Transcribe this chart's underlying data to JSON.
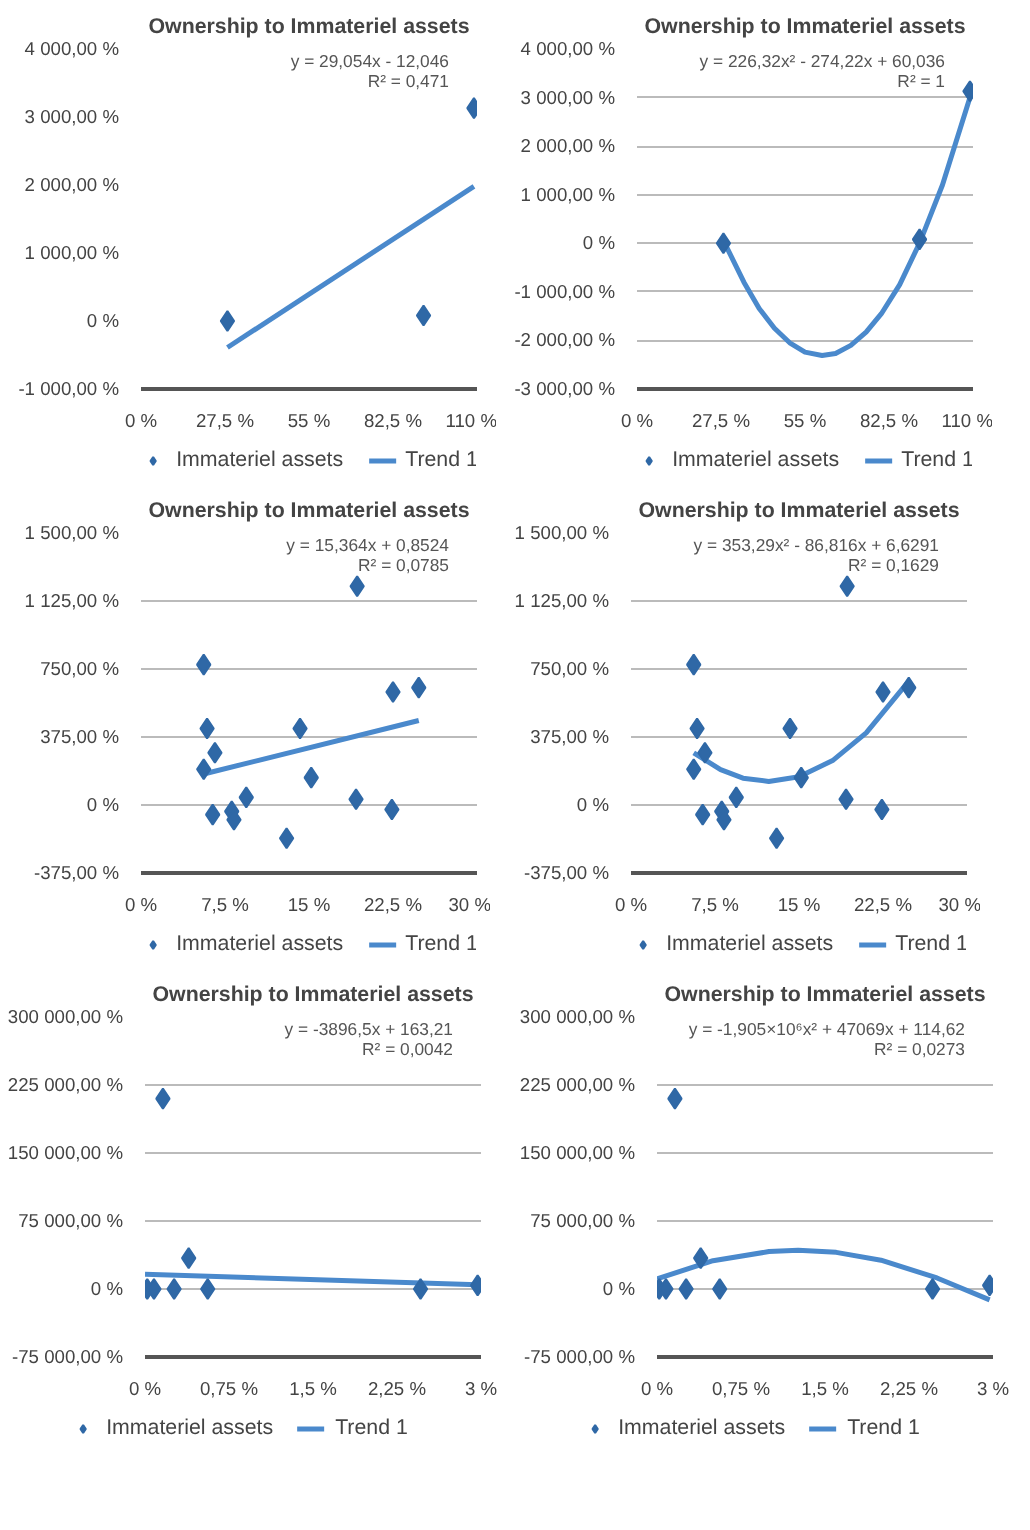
{
  "chart_data": [
    {
      "type": "scatter",
      "title": "Ownership to Immateriel assets",
      "annotations": [
        "y = 29,054x - 12,046",
        "R² = 0,471"
      ],
      "xlim": [
        0,
        110
      ],
      "xticks": [
        {
          "value": 0,
          "label": "0 %"
        },
        {
          "value": 27.5,
          "label": "27,5 %"
        },
        {
          "value": 55,
          "label": "55 %"
        },
        {
          "value": 82.5,
          "label": "82,5 %"
        },
        {
          "value": 110,
          "label": "110 %"
        }
      ],
      "ylim": [
        -1000,
        4000
      ],
      "yticks": [
        {
          "value": -1000,
          "label": "-1 000,00 %"
        },
        {
          "value": 0,
          "label": "0 %"
        },
        {
          "value": 1000,
          "label": "1 000,00 %"
        },
        {
          "value": 2000,
          "label": "2 000,00 %"
        },
        {
          "value": 3000,
          "label": "3 000,00 %"
        },
        {
          "value": 4000,
          "label": "4 000,00 %"
        }
      ],
      "grid": false,
      "legend": "bottom",
      "marker": "diamond",
      "series": [
        {
          "name": "Immateriel assets",
          "color": "#2f68a6",
          "x": [
            28.3,
            92.5,
            109
          ],
          "values": [
            0,
            80,
            3130
          ]
        },
        {
          "name": "Trend 1",
          "type": "line",
          "marker": "none",
          "color": "#4a89cc",
          "x": [
            28.3,
            109
          ],
          "values": [
            -390,
            1980
          ]
        }
      ]
    },
    {
      "type": "scatter",
      "title": "Ownership to Immateriel assets",
      "annotations": [
        "y = 226,32x² - 274,22x + 60,036",
        "R² = 1"
      ],
      "xlim": [
        0,
        110
      ],
      "xticks": [
        {
          "value": 0,
          "label": "0 %"
        },
        {
          "value": 27.5,
          "label": "27,5 %"
        },
        {
          "value": 55,
          "label": "55 %"
        },
        {
          "value": 82.5,
          "label": "82,5 %"
        },
        {
          "value": 110,
          "label": "110 %"
        }
      ],
      "ylim": [
        -3000,
        4000
      ],
      "yticks": [
        {
          "value": -3000,
          "label": "-3 000,00 %"
        },
        {
          "value": -2000,
          "label": "-2 000,00 %"
        },
        {
          "value": -1000,
          "label": "-1 000,00 %"
        },
        {
          "value": 0,
          "label": "0 %"
        },
        {
          "value": 1000,
          "label": "1 000,00 %"
        },
        {
          "value": 2000,
          "label": "2 000,00 %"
        },
        {
          "value": 3000,
          "label": "3 000,00 %"
        },
        {
          "value": 4000,
          "label": "4 000,00 %"
        }
      ],
      "grid": "y",
      "legend": "bottom",
      "marker": "diamond",
      "series": [
        {
          "name": "Immateriel assets",
          "color": "#2f68a6",
          "x": [
            28.3,
            92.5,
            109
          ],
          "values": [
            0,
            80,
            3130
          ]
        },
        {
          "name": "Trend 1",
          "type": "line",
          "marker": "none",
          "color": "#4a89cc",
          "x": [
            28.3,
            35,
            40,
            45,
            50,
            55,
            60.6,
            65,
            70,
            75,
            80,
            86,
            92.5,
            100,
            109
          ],
          "values": [
            56,
            -800,
            -1344,
            -1750,
            -2049,
            -2240,
            -2310,
            -2270,
            -2101,
            -1830,
            -1450,
            -850,
            4,
            1200,
            3000
          ]
        }
      ]
    },
    {
      "type": "scatter",
      "title": "Ownership to Immateriel assets",
      "annotations": [
        "y = 15,364x + 0,8524",
        "R² = 0,0785"
      ],
      "xlim": [
        0,
        30
      ],
      "xticks": [
        {
          "value": 0,
          "label": "0 %"
        },
        {
          "value": 7.5,
          "label": "7,5 %"
        },
        {
          "value": 15,
          "label": "15 %"
        },
        {
          "value": 22.5,
          "label": "22,5 %"
        },
        {
          "value": 30,
          "label": "30 %"
        }
      ],
      "ylim": [
        -375,
        1500
      ],
      "yticks": [
        {
          "value": -375,
          "label": "-375,00 %"
        },
        {
          "value": 0,
          "label": "0 %"
        },
        {
          "value": 375,
          "label": "375,00 %"
        },
        {
          "value": 750,
          "label": "750,00 %"
        },
        {
          "value": 1125,
          "label": "1 125,00 %"
        },
        {
          "value": 1500,
          "label": "1 500,00 %"
        }
      ],
      "grid": "y",
      "legend": "bottom",
      "marker": "diamond",
      "series": [
        {
          "name": "Immateriel assets",
          "color": "#2f68a6",
          "x": [
            5.6,
            5.9,
            6.6,
            5.6,
            6.4,
            8.1,
            8.3,
            9.4,
            13.0,
            14.2,
            15.2,
            19.3,
            19.2,
            22.5,
            22.4,
            24.8
          ],
          "values": [
            774,
            422,
            288,
            197,
            -53,
            -35,
            -81,
            42,
            -183,
            422,
            151,
            1206,
            32,
            623,
            -25,
            647
          ]
        },
        {
          "name": "Trend 1",
          "type": "line",
          "marker": "none",
          "color": "#4a89cc",
          "x": [
            5.6,
            24.8
          ],
          "values": [
            171,
            466
          ]
        }
      ]
    },
    {
      "type": "scatter",
      "title": "Ownership to Immateriel assets",
      "annotations": [
        "y = 353,29x² - 86,816x + 6,6291",
        "R² = 0,1629"
      ],
      "xlim": [
        0,
        30
      ],
      "xticks": [
        {
          "value": 0,
          "label": "0 %"
        },
        {
          "value": 7.5,
          "label": "7,5 %"
        },
        {
          "value": 15,
          "label": "15 %"
        },
        {
          "value": 22.5,
          "label": "22,5 %"
        },
        {
          "value": 30,
          "label": "30 %"
        }
      ],
      "ylim": [
        -375,
        1500
      ],
      "yticks": [
        {
          "value": -375,
          "label": "-375,00 %"
        },
        {
          "value": 0,
          "label": "0 %"
        },
        {
          "value": 375,
          "label": "375,00 %"
        },
        {
          "value": 750,
          "label": "750,00 %"
        },
        {
          "value": 1125,
          "label": "1 125,00 %"
        },
        {
          "value": 1500,
          "label": "1 500,00 %"
        }
      ],
      "grid": "y",
      "legend": "bottom",
      "marker": "diamond",
      "series": [
        {
          "name": "Immateriel assets",
          "color": "#2f68a6",
          "x": [
            5.6,
            5.9,
            6.6,
            5.6,
            6.4,
            8.1,
            8.3,
            9.4,
            13.0,
            14.2,
            15.2,
            19.3,
            19.2,
            22.5,
            22.4,
            24.8
          ],
          "values": [
            774,
            422,
            288,
            197,
            -53,
            -35,
            -81,
            42,
            -183,
            422,
            151,
            1206,
            32,
            623,
            -25,
            647
          ]
        },
        {
          "name": "Trend 1",
          "type": "line",
          "marker": "none",
          "color": "#4a89cc",
          "x": [
            5.6,
            8,
            10,
            12.3,
            15,
            18,
            21,
            24.8
          ],
          "values": [
            288,
            195,
            148,
            130,
            156,
            245,
            398,
            683
          ]
        }
      ]
    },
    {
      "type": "scatter",
      "title": "Ownership to Immateriel assets",
      "annotations": [
        "y = -3896,5x + 163,21",
        "R² = 0,0042"
      ],
      "xlim": [
        0,
        3
      ],
      "xticks": [
        {
          "value": 0,
          "label": "0 %"
        },
        {
          "value": 0.75,
          "label": "0,75 %"
        },
        {
          "value": 1.5,
          "label": "1,5 %"
        },
        {
          "value": 2.25,
          "label": "2,25 %"
        },
        {
          "value": 3,
          "label": "3 %"
        }
      ],
      "ylim": [
        -75000,
        300000
      ],
      "yticks": [
        {
          "value": -75000,
          "label": "-75 000,00 %"
        },
        {
          "value": 0,
          "label": "0 %"
        },
        {
          "value": 75000,
          "label": "75 000,00 %"
        },
        {
          "value": 150000,
          "label": "150 000,00 %"
        },
        {
          "value": 225000,
          "label": "225 000,00 %"
        },
        {
          "value": 300000,
          "label": "300 000,00 %"
        }
      ],
      "grid": "y",
      "legend": "bottom",
      "marker": "diamond",
      "series": [
        {
          "name": "Immateriel assets",
          "color": "#2f68a6",
          "x": [
            0.02,
            0.08,
            0.16,
            0.26,
            0.39,
            0.56,
            2.46,
            2.97
          ],
          "values": [
            0,
            0,
            210000,
            0,
            34000,
            0,
            0,
            4000
          ]
        },
        {
          "name": "Trend 1",
          "type": "line",
          "marker": "none",
          "color": "#4a89cc",
          "x": [
            0,
            2.97
          ],
          "values": [
            16300,
            4700
          ]
        }
      ]
    },
    {
      "type": "scatter",
      "title": "Ownership to Immateriel assets",
      "annotations": [
        "y = -1,905×10⁶x² + 47069x + 114,62",
        "R² = 0,0273"
      ],
      "xlim": [
        0,
        3
      ],
      "xticks": [
        {
          "value": 0,
          "label": "0 %"
        },
        {
          "value": 0.75,
          "label": "0,75 %"
        },
        {
          "value": 1.5,
          "label": "1,5 %"
        },
        {
          "value": 2.25,
          "label": "2,25 %"
        },
        {
          "value": 3,
          "label": "3 %"
        }
      ],
      "ylim": [
        -75000,
        300000
      ],
      "yticks": [
        {
          "value": -75000,
          "label": "-75 000,00 %"
        },
        {
          "value": 0,
          "label": "0 %"
        },
        {
          "value": 75000,
          "label": "75 000,00 %"
        },
        {
          "value": 150000,
          "label": "150 000,00 %"
        },
        {
          "value": 225000,
          "label": "225 000,00 %"
        },
        {
          "value": 300000,
          "label": "300 000,00 %"
        }
      ],
      "grid": "y",
      "legend": "bottom",
      "marker": "diamond",
      "series": [
        {
          "name": "Immateriel assets",
          "color": "#2f68a6",
          "x": [
            0.02,
            0.08,
            0.16,
            0.26,
            0.39,
            0.56,
            2.46,
            2.97
          ],
          "values": [
            0,
            0,
            210000,
            0,
            34000,
            0,
            0,
            4000
          ]
        },
        {
          "name": "Trend 1",
          "type": "line",
          "marker": "none",
          "color": "#4a89cc",
          "x": [
            0,
            0.5,
            1.0,
            1.26,
            1.6,
            2.0,
            2.5,
            2.97
          ],
          "values": [
            11200,
            31200,
            41300,
            42700,
            40400,
            31800,
            12200,
            -12000
          ]
        }
      ]
    }
  ]
}
